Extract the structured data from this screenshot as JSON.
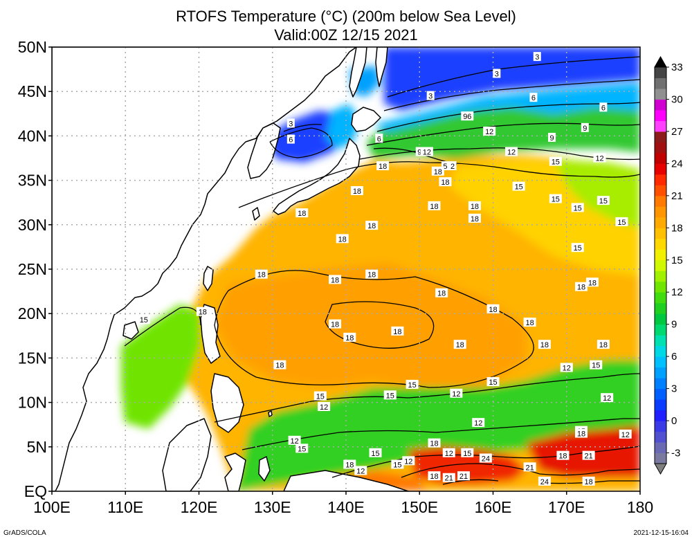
{
  "title_line1": "RTOFS Temperature (°C) (200m below Sea Level)",
  "title_line2": "Valid:00Z 12/15 2021",
  "footer_left": "GrADS/COLA",
  "footer_right": "2021-12-15-16:04",
  "lat_labels": [
    {
      "lat": 50,
      "text": "50N"
    },
    {
      "lat": 45,
      "text": "45N"
    },
    {
      "lat": 40,
      "text": "40N"
    },
    {
      "lat": 35,
      "text": "35N"
    },
    {
      "lat": 30,
      "text": "30N"
    },
    {
      "lat": 25,
      "text": "25N"
    },
    {
      "lat": 20,
      "text": "20N"
    },
    {
      "lat": 15,
      "text": "15N"
    },
    {
      "lat": 10,
      "text": "10N"
    },
    {
      "lat": 5,
      "text": "5N"
    },
    {
      "lat": 0,
      "text": "EQ"
    }
  ],
  "lon_labels": [
    {
      "lon": 100,
      "text": "100E"
    },
    {
      "lon": 110,
      "text": "110E"
    },
    {
      "lon": 120,
      "text": "120E"
    },
    {
      "lon": 130,
      "text": "130E"
    },
    {
      "lon": 140,
      "text": "140E"
    },
    {
      "lon": 150,
      "text": "150E"
    },
    {
      "lon": 160,
      "text": "160E"
    },
    {
      "lon": 170,
      "text": "170E"
    },
    {
      "lon": 180,
      "text": "180"
    }
  ],
  "colorbar": {
    "bins": [
      {
        "from": -4,
        "to": -3,
        "color": "#7a7aa0"
      },
      {
        "from": -3,
        "to": -2,
        "color": "#6a6ab4"
      },
      {
        "from": -2,
        "to": -1,
        "color": "#5050d0"
      },
      {
        "from": -1,
        "to": 0,
        "color": "#3a3ae6"
      },
      {
        "from": 0,
        "to": 1,
        "color": "#1f1fff"
      },
      {
        "from": 1,
        "to": 2,
        "color": "#0a3cff"
      },
      {
        "from": 2,
        "to": 3,
        "color": "#0060ff"
      },
      {
        "from": 3,
        "to": 4,
        "color": "#0080ff"
      },
      {
        "from": 4,
        "to": 5,
        "color": "#00a0ff"
      },
      {
        "from": 5,
        "to": 6,
        "color": "#00c0ff"
      },
      {
        "from": 6,
        "to": 7,
        "color": "#00d8e6"
      },
      {
        "from": 7,
        "to": 8,
        "color": "#00e0b0"
      },
      {
        "from": 8,
        "to": 9,
        "color": "#00d870"
      },
      {
        "from": 9,
        "to": 10,
        "color": "#00c840"
      },
      {
        "from": 10,
        "to": 11,
        "color": "#20d020"
      },
      {
        "from": 11,
        "to": 12,
        "color": "#40dc10"
      },
      {
        "from": 12,
        "to": 13,
        "color": "#70e600"
      },
      {
        "from": 13,
        "to": 14,
        "color": "#a0f000"
      },
      {
        "from": 14,
        "to": 15,
        "color": "#d0f800"
      },
      {
        "from": 15,
        "to": 16,
        "color": "#f0f000"
      },
      {
        "from": 16,
        "to": 17,
        "color": "#ffd800"
      },
      {
        "from": 17,
        "to": 18,
        "color": "#ffc000"
      },
      {
        "from": 18,
        "to": 19,
        "color": "#ffaa00"
      },
      {
        "from": 19,
        "to": 20,
        "color": "#ff9600"
      },
      {
        "from": 20,
        "to": 21,
        "color": "#ff7a00"
      },
      {
        "from": 21,
        "to": 22,
        "color": "#ff5000"
      },
      {
        "from": 22,
        "to": 23,
        "color": "#ff2a00"
      },
      {
        "from": 23,
        "to": 24,
        "color": "#e60000"
      },
      {
        "from": 24,
        "to": 25,
        "color": "#c00000"
      },
      {
        "from": 25,
        "to": 26,
        "color": "#a01010"
      },
      {
        "from": 26,
        "to": 27,
        "color": "#8c1c1c"
      },
      {
        "from": 27,
        "to": 28,
        "color": "#ff40ff"
      },
      {
        "from": 28,
        "to": 29,
        "color": "#ff00ff"
      },
      {
        "from": 29,
        "to": 30,
        "color": "#d000d0"
      },
      {
        "from": 30,
        "to": 31,
        "color": "#909090"
      },
      {
        "from": 31,
        "to": 32,
        "color": "#707070"
      },
      {
        "from": 32,
        "to": 33,
        "color": "#444444"
      }
    ],
    "tick_labels": [
      {
        "value": 33,
        "text": "33"
      },
      {
        "value": 30,
        "text": "30"
      },
      {
        "value": 27,
        "text": "27"
      },
      {
        "value": 24,
        "text": "24"
      },
      {
        "value": 21,
        "text": "21"
      },
      {
        "value": 18,
        "text": "18"
      },
      {
        "value": 15,
        "text": "15"
      },
      {
        "value": 12,
        "text": "12"
      },
      {
        "value": 9,
        "text": "9"
      },
      {
        "value": 6,
        "text": "6"
      },
      {
        "value": 3,
        "text": "3"
      },
      {
        "value": 0,
        "text": "0"
      },
      {
        "value": -3,
        "text": "-3"
      }
    ],
    "top_arrow_color": "#000000",
    "bottom_arrow_color": "#7f7f7f"
  },
  "contour_labels": [
    {
      "lon": 166,
      "lat": 48.9,
      "text": "3"
    },
    {
      "lon": 160.5,
      "lat": 47.0,
      "text": "3"
    },
    {
      "lon": 151.5,
      "lat": 44.5,
      "text": "3"
    },
    {
      "lon": 165.5,
      "lat": 44.3,
      "text": "6"
    },
    {
      "lon": 175,
      "lat": 43.2,
      "text": "6"
    },
    {
      "lon": 156.5,
      "lat": 42.2,
      "text": "96"
    },
    {
      "lon": 159.5,
      "lat": 40.5,
      "text": "12"
    },
    {
      "lon": 172.5,
      "lat": 40.9,
      "text": "9"
    },
    {
      "lon": 168,
      "lat": 39.8,
      "text": "9"
    },
    {
      "lon": 132.5,
      "lat": 41.4,
      "text": "3"
    },
    {
      "lon": 132.5,
      "lat": 39.6,
      "text": "6"
    },
    {
      "lon": 144.5,
      "lat": 39.7,
      "text": "6"
    },
    {
      "lon": 150,
      "lat": 38.2,
      "text": "9"
    },
    {
      "lon": 151,
      "lat": 38.2,
      "text": "12"
    },
    {
      "lon": 162.5,
      "lat": 38.2,
      "text": "12"
    },
    {
      "lon": 174.5,
      "lat": 37.5,
      "text": "12"
    },
    {
      "lon": 168.5,
      "lat": 37.1,
      "text": "15"
    },
    {
      "lon": 145,
      "lat": 36.6,
      "text": "18"
    },
    {
      "lon": 153.5,
      "lat": 36.6,
      "text": "5"
    },
    {
      "lon": 154.5,
      "lat": 36.6,
      "text": "2"
    },
    {
      "lon": 152.5,
      "lat": 36.0,
      "text": "18"
    },
    {
      "lon": 153.5,
      "lat": 34.8,
      "text": "18"
    },
    {
      "lon": 141.5,
      "lat": 33.8,
      "text": "18"
    },
    {
      "lon": 163.5,
      "lat": 34.3,
      "text": "15"
    },
    {
      "lon": 168.5,
      "lat": 32.9,
      "text": "15"
    },
    {
      "lon": 175,
      "lat": 32.7,
      "text": "15"
    },
    {
      "lon": 171.5,
      "lat": 31.9,
      "text": "15"
    },
    {
      "lon": 152,
      "lat": 32.1,
      "text": "18"
    },
    {
      "lon": 157.5,
      "lat": 32.1,
      "text": "18"
    },
    {
      "lon": 157.5,
      "lat": 30.7,
      "text": "18"
    },
    {
      "lon": 177.5,
      "lat": 30.3,
      "text": "15"
    },
    {
      "lon": 134,
      "lat": 31.3,
      "text": "18"
    },
    {
      "lon": 143.5,
      "lat": 29.9,
      "text": "18"
    },
    {
      "lon": 139.5,
      "lat": 28.4,
      "text": "18"
    },
    {
      "lon": 171.5,
      "lat": 27.4,
      "text": "15"
    },
    {
      "lon": 128.5,
      "lat": 24.4,
      "text": "18"
    },
    {
      "lon": 143.5,
      "lat": 24.4,
      "text": "18"
    },
    {
      "lon": 138.5,
      "lat": 23.8,
      "text": "18"
    },
    {
      "lon": 173.5,
      "lat": 23.5,
      "text": "18"
    },
    {
      "lon": 172,
      "lat": 23.0,
      "text": "18"
    },
    {
      "lon": 153,
      "lat": 22.3,
      "text": "18"
    },
    {
      "lon": 120.5,
      "lat": 20.2,
      "text": "18"
    },
    {
      "lon": 160,
      "lat": 20.5,
      "text": "18"
    },
    {
      "lon": 138.5,
      "lat": 18.8,
      "text": "18"
    },
    {
      "lon": 165,
      "lat": 19.0,
      "text": "18"
    },
    {
      "lon": 147,
      "lat": 18.0,
      "text": "18"
    },
    {
      "lon": 112.5,
      "lat": 19.3,
      "text": "15"
    },
    {
      "lon": 140.5,
      "lat": 17.3,
      "text": "18"
    },
    {
      "lon": 155.5,
      "lat": 16.5,
      "text": "18"
    },
    {
      "lon": 167,
      "lat": 16.5,
      "text": "18"
    },
    {
      "lon": 175,
      "lat": 16.5,
      "text": "18"
    },
    {
      "lon": 131,
      "lat": 14.2,
      "text": "18"
    },
    {
      "lon": 170,
      "lat": 13.9,
      "text": "12"
    },
    {
      "lon": 174,
      "lat": 14.2,
      "text": "15"
    },
    {
      "lon": 149,
      "lat": 12.0,
      "text": "15"
    },
    {
      "lon": 160,
      "lat": 12.3,
      "text": "15"
    },
    {
      "lon": 155,
      "lat": 11.0,
      "text": "12"
    },
    {
      "lon": 136.5,
      "lat": 10.7,
      "text": "15"
    },
    {
      "lon": 146,
      "lat": 10.8,
      "text": "15"
    },
    {
      "lon": 175.5,
      "lat": 10.5,
      "text": "12"
    },
    {
      "lon": 137,
      "lat": 9.5,
      "text": "12"
    },
    {
      "lon": 158,
      "lat": 7.7,
      "text": "12"
    },
    {
      "lon": 172,
      "lat": 6.8,
      "text": "15"
    },
    {
      "lon": 172,
      "lat": 6.5,
      "text": "18"
    },
    {
      "lon": 133,
      "lat": 5.7,
      "text": "12"
    },
    {
      "lon": 152,
      "lat": 5.4,
      "text": "18"
    },
    {
      "lon": 178,
      "lat": 6.4,
      "text": "12"
    },
    {
      "lon": 134,
      "lat": 4.8,
      "text": "15"
    },
    {
      "lon": 144,
      "lat": 4.3,
      "text": "15"
    },
    {
      "lon": 154,
      "lat": 4.3,
      "text": "12"
    },
    {
      "lon": 156.5,
      "lat": 4.3,
      "text": "15"
    },
    {
      "lon": 159,
      "lat": 3.7,
      "text": "24"
    },
    {
      "lon": 169.5,
      "lat": 4.0,
      "text": "18"
    },
    {
      "lon": 173,
      "lat": 4.0,
      "text": "21"
    },
    {
      "lon": 148.5,
      "lat": 3.4,
      "text": "12"
    },
    {
      "lon": 147,
      "lat": 3.0,
      "text": "15"
    },
    {
      "lon": 140.5,
      "lat": 3.0,
      "text": "18"
    },
    {
      "lon": 165,
      "lat": 2.7,
      "text": "21"
    },
    {
      "lon": 142,
      "lat": 2.3,
      "text": "12"
    },
    {
      "lon": 152,
      "lat": 1.7,
      "text": "18"
    },
    {
      "lon": 154,
      "lat": 1.5,
      "text": "21"
    },
    {
      "lon": 156,
      "lat": 1.7,
      "text": "21"
    },
    {
      "lon": 167,
      "lat": 1.1,
      "text": "24"
    },
    {
      "lon": 173,
      "lat": 1.1,
      "text": "18"
    }
  ]
}
